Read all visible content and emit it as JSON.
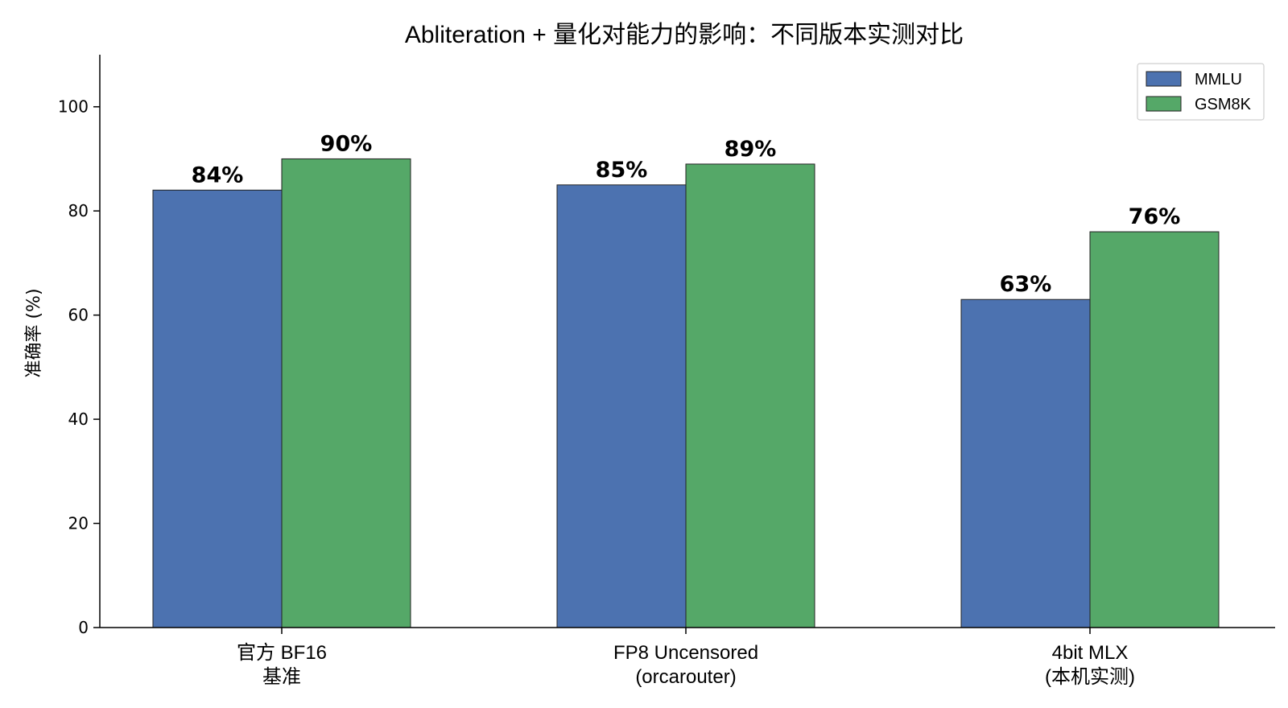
{
  "chart_data": {
    "type": "bar",
    "title": "Abliteration + 量化对能力的影响：不同版本实测对比",
    "ylabel": "准确率 (%)",
    "xlabel": "",
    "ylim": [
      0,
      110
    ],
    "yticks": [
      0,
      20,
      40,
      60,
      80,
      100
    ],
    "categories": [
      [
        "官方 BF16",
        "基准"
      ],
      [
        "FP8 Uncensored",
        "(orcarouter)"
      ],
      [
        "4bit MLX",
        "(本机实测)"
      ]
    ],
    "series": [
      {
        "name": "MMLU",
        "color": "#4c72b0",
        "values": [
          84,
          85,
          63
        ],
        "labels": [
          "84%",
          "85%",
          "63%"
        ]
      },
      {
        "name": "GSM8K",
        "color": "#55a868",
        "values": [
          90,
          89,
          76
        ],
        "labels": [
          "90%",
          "89%",
          "76%"
        ]
      }
    ],
    "legend": "top-right",
    "grid": false
  }
}
